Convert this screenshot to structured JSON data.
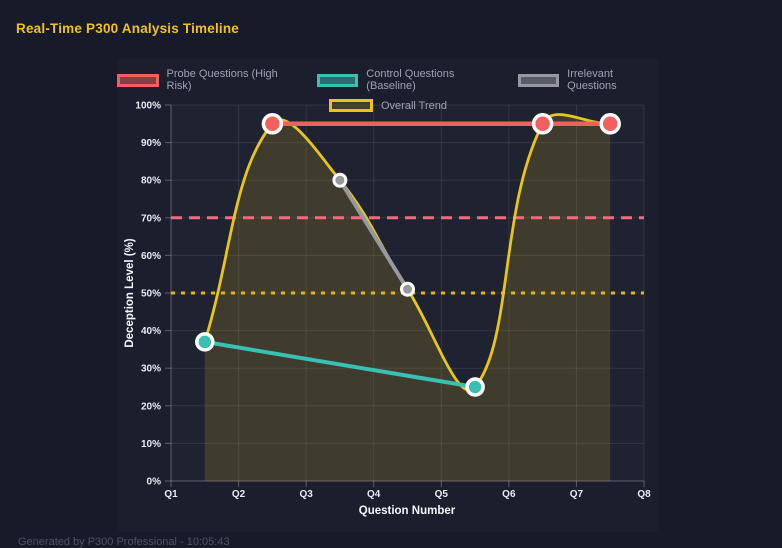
{
  "page": {
    "title": "Real-Time P300 Analysis Timeline",
    "footer": "Generated by P300 Professional - 10:05:43"
  },
  "chart_data": {
    "type": "line",
    "title": "Real-Time P300 Analysis Timeline",
    "xlabel": "Question Number",
    "ylabel": "Deception Level (%)",
    "x_ticks": [
      "Q1",
      "Q2",
      "Q3",
      "Q4",
      "Q5",
      "Q6",
      "Q7",
      "Q8"
    ],
    "y_ticks": [
      "0%",
      "10%",
      "20%",
      "30%",
      "40%",
      "50%",
      "60%",
      "70%",
      "80%",
      "90%",
      "100%"
    ],
    "xlim": [
      1,
      8
    ],
    "ylim": [
      0,
      100
    ],
    "grid": true,
    "legend_position": "top",
    "series": [
      {
        "name": "Probe Questions (High Risk)",
        "x": [
          2.5,
          6.5,
          7.5
        ],
        "values": [
          95,
          95,
          95
        ],
        "color": "#f25f5f",
        "line_width": 4.5,
        "point_radius": 9
      },
      {
        "name": "Control Questions (Baseline)",
        "x": [
          1.5,
          5.5
        ],
        "values": [
          37,
          25
        ],
        "color": "#39c0b3",
        "line_width": 4,
        "point_radius": 8
      },
      {
        "name": "Irrelevant Questions",
        "x": [
          3.5,
          4.5
        ],
        "values": [
          80,
          51
        ],
        "color": "#97979f",
        "line_width": 4,
        "point_radius": 6
      },
      {
        "name": "Overall Trend",
        "x": [
          1.5,
          2.5,
          3.5,
          4.5,
          5.5,
          6.5,
          7.5
        ],
        "values": [
          37,
          95,
          80,
          51,
          25,
          95,
          95
        ],
        "color": "#e8c51d",
        "line_width": 2.8,
        "point_radius": 0,
        "smooth": true,
        "fill": true
      }
    ],
    "thresholds": [
      {
        "value": 70,
        "color": "#f5697a",
        "style": "dashed"
      },
      {
        "value": 50,
        "color": "#e6b50b",
        "style": "dotted"
      }
    ]
  }
}
